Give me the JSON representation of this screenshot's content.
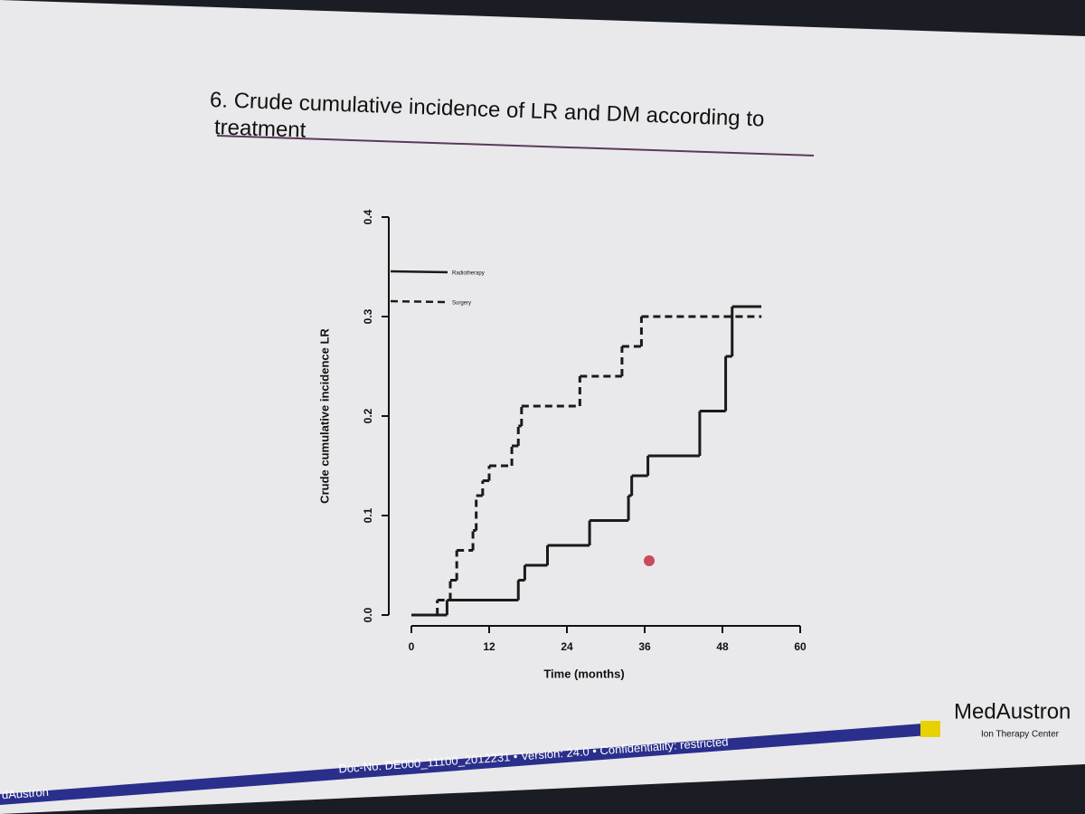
{
  "slide": {
    "heading": "6. Crude cumulative incidence of LR and DM according to treatment",
    "footer": "Doc-No: DE000_11100_2012231 • Version: 24.0 • Confidentiality: restricted",
    "footer_left": "dAustron",
    "brand": "MedAustron",
    "brand_sub": "Ion Therapy Center"
  },
  "chart_data": {
    "type": "line",
    "drawstyle": "steps-post",
    "x_label": "Time (months)",
    "y_label": "Crude cumulative incidence LR",
    "xlim": [
      0,
      60
    ],
    "ylim": [
      0,
      0.4
    ],
    "xticks": [
      0,
      12,
      24,
      36,
      48,
      60
    ],
    "yticks": [
      {
        "value": 0,
        "label": "0.0"
      },
      0.1,
      0.2,
      0.3,
      0.4
    ],
    "legend": "upper left",
    "series": [
      {
        "name": "Radiotherapy",
        "color": "#1a1a1a",
        "dash": "solid",
        "x": [
          0,
          5.5,
          16.5,
          17.5,
          21,
          27.5,
          33.5,
          34,
          36.5,
          44.5,
          48.5,
          49.5,
          54
        ],
        "values": [
          0,
          0.015,
          0.035,
          0.05,
          0.07,
          0.095,
          0.12,
          0.14,
          0.16,
          0.205,
          0.26,
          0.31,
          0.31
        ]
      },
      {
        "name": "Surgery",
        "color": "#1a1a1a",
        "dash": "dashed",
        "x": [
          0,
          4,
          6,
          7,
          9.5,
          10,
          11,
          12,
          15.5,
          16.5,
          17,
          26,
          32.5,
          35.5,
          54
        ],
        "values": [
          0,
          0.015,
          0.035,
          0.065,
          0.085,
          0.12,
          0.135,
          0.15,
          0.17,
          0.19,
          0.21,
          0.24,
          0.27,
          0.3,
          0.3
        ]
      }
    ]
  }
}
